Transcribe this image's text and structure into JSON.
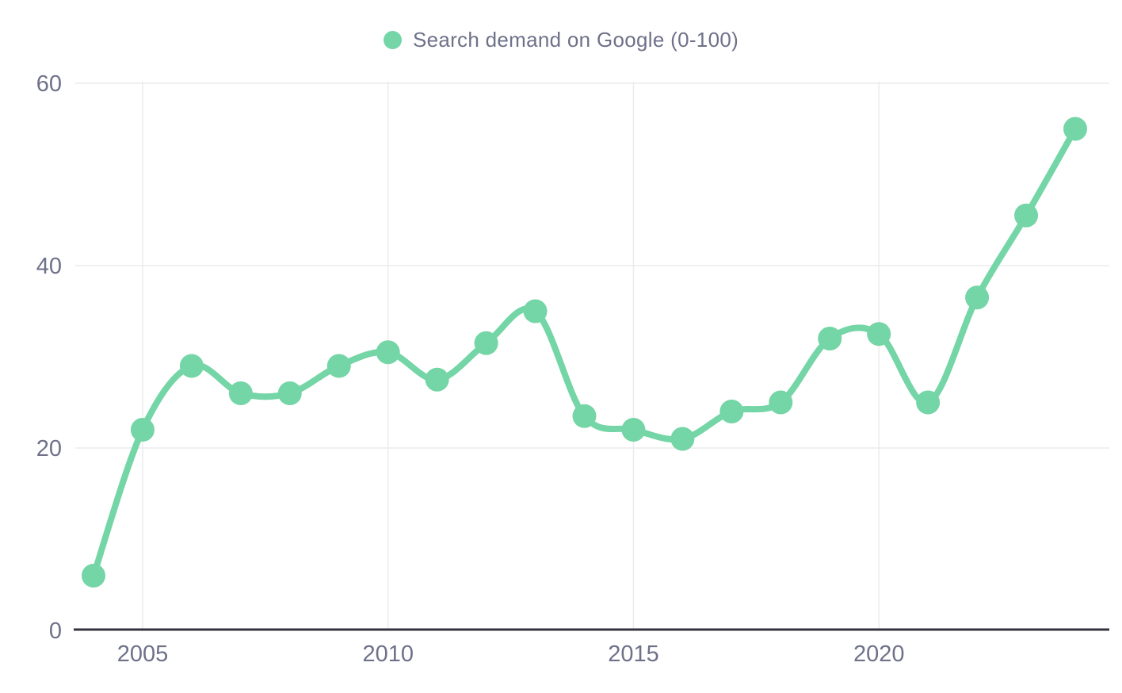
{
  "page": {
    "background_color": "#ffffff"
  },
  "legend": {
    "label": "Search demand on Google (0-100)",
    "marker_color": "#74d5a6",
    "text_color": "#6e7189"
  },
  "axes": {
    "tick_label_color": "#6e7189",
    "grid_color": "#ebebee",
    "axis_line_color": "#33333d"
  },
  "chart_data": {
    "type": "line",
    "title": "",
    "xlabel": "",
    "ylabel": "",
    "legend_position": "top-center",
    "line_style": "smooth",
    "marker_style": "filled-circle",
    "grid": "horizontal lines at y ticks, vertical lines at labeled x ticks",
    "ylim": [
      0,
      60
    ],
    "y_ticks": [
      0,
      20,
      40,
      60
    ],
    "x_ticks": [
      2005,
      2010,
      2015,
      2020
    ],
    "x": [
      2004,
      2005,
      2006,
      2007,
      2008,
      2009,
      2010,
      2011,
      2012,
      2013,
      2014,
      2015,
      2016,
      2017,
      2018,
      2019,
      2020,
      2021,
      2022,
      2023,
      2024
    ],
    "series": [
      {
        "name": "Search demand on Google (0-100)",
        "color": "#74d5a6",
        "values": [
          6,
          22,
          29,
          26,
          26,
          29,
          30.5,
          27.5,
          31.5,
          35,
          23.5,
          22,
          21,
          24,
          25,
          32,
          32.5,
          25,
          36.5,
          45.5,
          55
        ]
      }
    ]
  }
}
